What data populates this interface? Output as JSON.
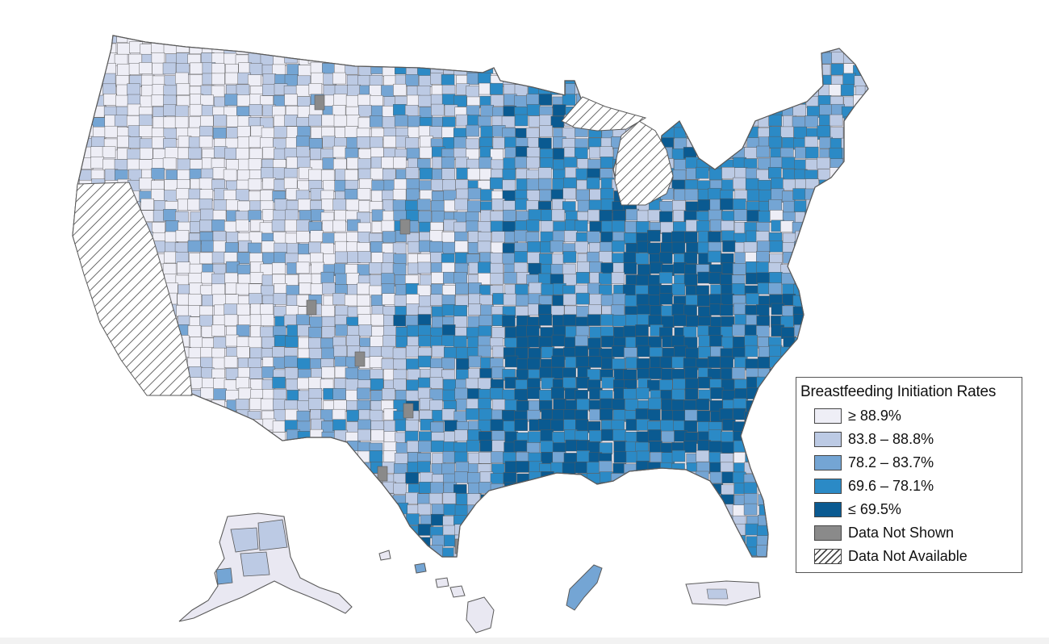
{
  "legend": {
    "title": "Breastfeeding Initiation Rates",
    "items": [
      {
        "label": "≥ 88.9%",
        "color": "#eeeef6"
      },
      {
        "label": "83.8 – 88.8%",
        "color": "#bccae4"
      },
      {
        "label": "78.2 – 83.7%",
        "color": "#74a5d4"
      },
      {
        "label": "69.6 – 78.1%",
        "color": "#2b8ac6"
      },
      {
        "label": "≤ 69.5%",
        "color": "#0a5a91"
      },
      {
        "label": "Data Not Shown",
        "color": "#8a8a8a"
      },
      {
        "label": "Data Not Available",
        "color": "hatched"
      }
    ]
  },
  "colors": {
    "border": "#5a5a5a",
    "background": "#ffffff"
  }
}
